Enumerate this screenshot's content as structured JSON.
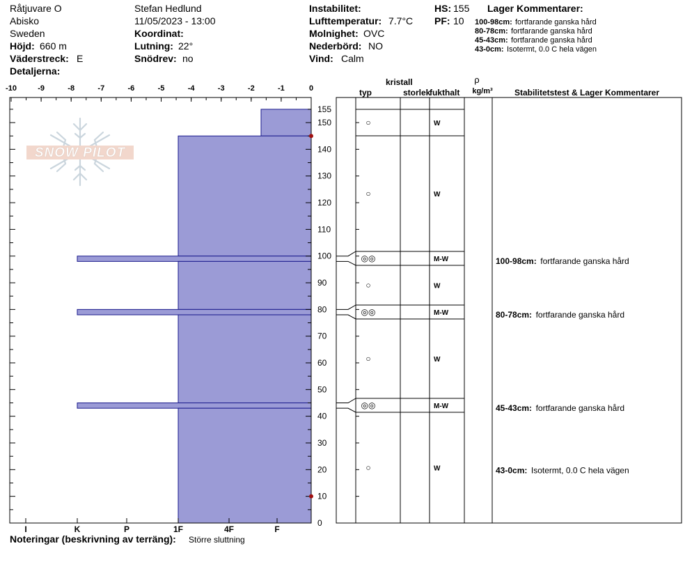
{
  "header": {
    "location": "Råtjuvare O",
    "area": "Abisko",
    "country": "Sweden",
    "elevation_label": "Höjd:",
    "elevation_value": "660 m",
    "aspect_label": "Väderstreck:",
    "aspect_value": "E",
    "details_label": "Detaljerna:",
    "observer": "Stefan Hedlund",
    "datetime": "11/05/2023 - 13:00",
    "coord_label": "Koordinat:",
    "slope_label": "Lutning:",
    "slope_value": "22°",
    "drift_label": "Snödrev:",
    "drift_value": "no",
    "instability_label": "Instabilitet:",
    "airtemp_label": "Lufttemperatur:",
    "airtemp_value": "7.7°C",
    "sky_label": "Molnighet:",
    "sky_value": "OVC",
    "precip_label": "Nederbörd:",
    "precip_value": "NO",
    "wind_label": "Vind:",
    "wind_value": "Calm",
    "hs_label": "HS:",
    "hs_value": "155",
    "pf_label": "PF:",
    "pf_value": "10",
    "layer_comments_title": "Lager Kommentarer:",
    "layer_comments": [
      {
        "range": "100-98cm:",
        "text": "fortfarande ganska hård"
      },
      {
        "range": "80-78cm:",
        "text": "fortfarande ganska hård"
      },
      {
        "range": "45-43cm:",
        "text": "fortfarande ganska hård"
      },
      {
        "range": "43-0cm:",
        "text": "Isotermt, 0.0 C hela vägen"
      }
    ]
  },
  "logo_text": "SNOW PILOT",
  "columns": {
    "crystal": "kristall",
    "type": "typ",
    "size": "storlek",
    "moisture": "fukthalt",
    "rho": "ρ",
    "density_unit": "kg/m³",
    "stability": "Stabilitetstest & Lager Kommentarer"
  },
  "footer": {
    "notes_label": "Noteringar (beskrivning av terräng):",
    "notes_value": "Större sluttning"
  },
  "chart_data": {
    "type": "bar",
    "temp_axis": {
      "ticks": [
        "-10",
        "-9",
        "-8",
        "-7",
        "-6",
        "-5",
        "-4",
        "-3",
        "-2",
        "-1",
        "0"
      ],
      "range": [
        -10,
        0
      ]
    },
    "hardness_axis": {
      "ticks": [
        "I",
        "K",
        "P",
        "1F",
        "4F",
        "F"
      ]
    },
    "height_axis": {
      "ticks": [
        "0",
        "10",
        "20",
        "30",
        "40",
        "50",
        "60",
        "70",
        "80",
        "90",
        "100",
        "110",
        "120",
        "130",
        "140",
        "150",
        "155"
      ],
      "range": [
        0,
        155
      ]
    },
    "hardness_layers": [
      {
        "bottom": 145,
        "top": 155,
        "hardness": "F+"
      },
      {
        "bottom": 100,
        "top": 145,
        "hardness": "1F"
      },
      {
        "bottom": 98,
        "top": 100,
        "hardness": "K"
      },
      {
        "bottom": 80,
        "top": 98,
        "hardness": "1F"
      },
      {
        "bottom": 78,
        "top": 80,
        "hardness": "K"
      },
      {
        "bottom": 45,
        "top": 78,
        "hardness": "1F"
      },
      {
        "bottom": 43,
        "top": 45,
        "hardness": "K"
      },
      {
        "bottom": 0,
        "top": 43,
        "hardness": "1F"
      }
    ],
    "temperature_points": [
      {
        "height": 145,
        "temp": 0
      },
      {
        "height": 10,
        "temp": 0
      }
    ],
    "strata": [
      {
        "top": 155,
        "bottom": 145,
        "grain": "○",
        "moisture": "W"
      },
      {
        "top": 145,
        "bottom": 100,
        "grain": "○",
        "moisture": "W"
      },
      {
        "top": 100,
        "bottom": 98,
        "grain": "◎◎",
        "moisture": "M-W",
        "comment_range": "100-98cm:",
        "comment": "fortfarande ganska hård"
      },
      {
        "top": 98,
        "bottom": 80,
        "grain": "○",
        "moisture": "W"
      },
      {
        "top": 80,
        "bottom": 78,
        "grain": "◎◎",
        "moisture": "M-W",
        "comment_range": "80-78cm:",
        "comment": "fortfarande ganska hård"
      },
      {
        "top": 78,
        "bottom": 45,
        "grain": "○",
        "moisture": "W"
      },
      {
        "top": 45,
        "bottom": 43,
        "grain": "◎◎",
        "moisture": "M-W",
        "comment_range": "45-43cm:",
        "comment": "fortfarande ganska hård"
      },
      {
        "top": 43,
        "bottom": 0,
        "grain": "○",
        "moisture": "W",
        "comment_range": "43-0cm:",
        "comment": "Isotermt, 0.0 C hela vägen"
      }
    ]
  }
}
